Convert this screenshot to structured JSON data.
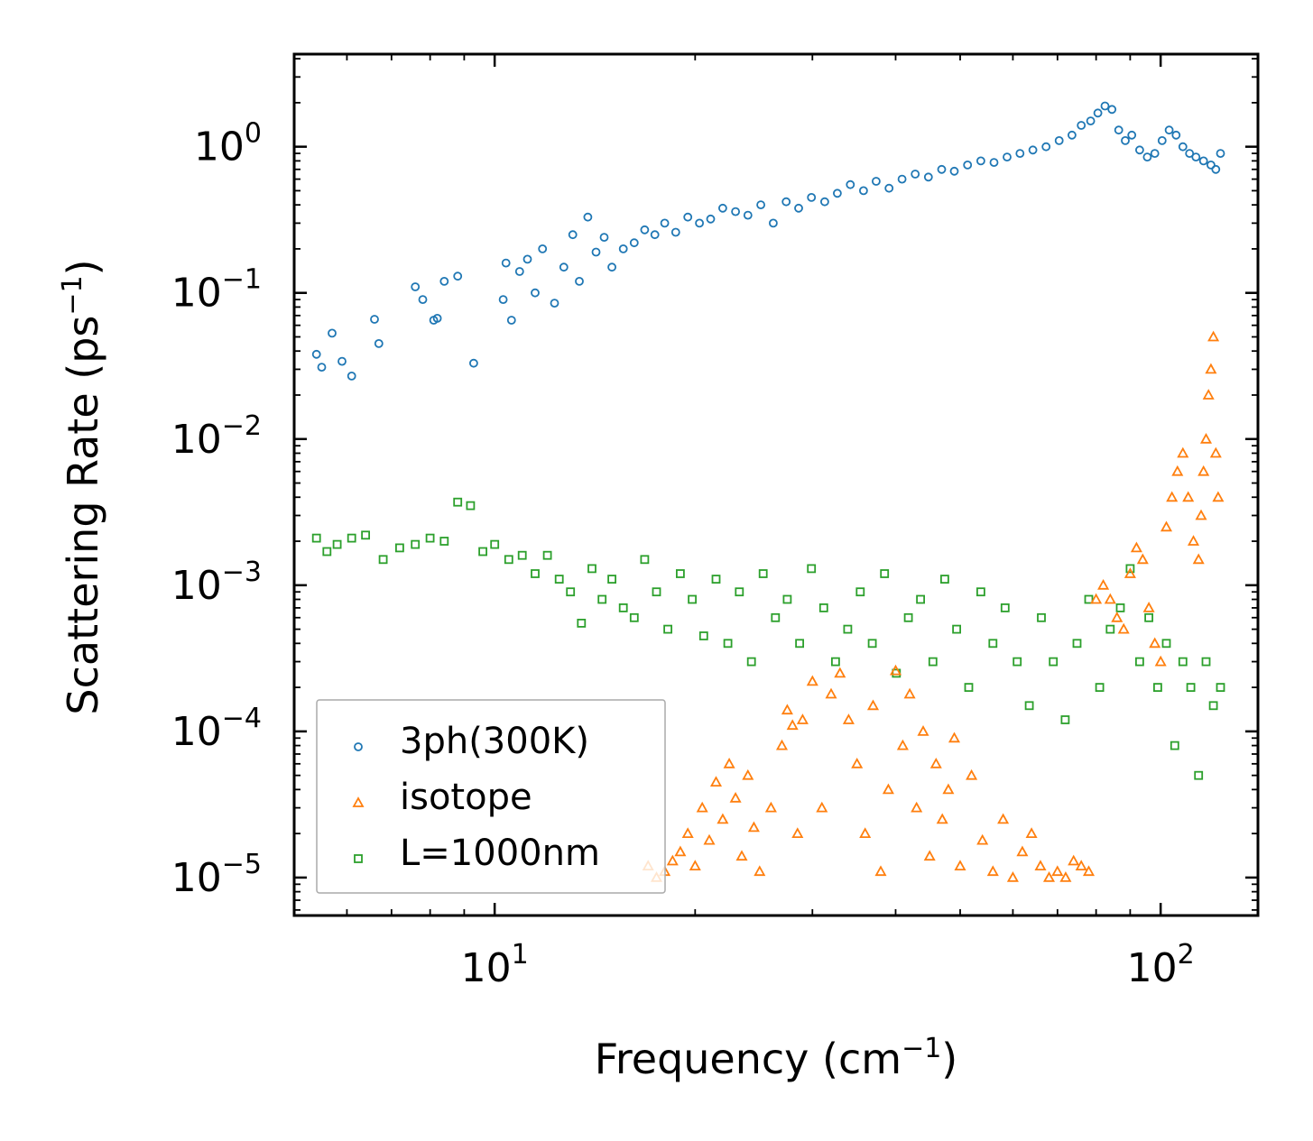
{
  "chart_data": {
    "type": "scatter",
    "title": "",
    "xlabel": "Frequency (cm",
    "xlabel_sup": "−1",
    "xlabel_end": ")",
    "ylabel": "Scattering Rate (ps",
    "ylabel_sup": "−1",
    "ylabel_end": ")",
    "xscale": "log",
    "yscale": "log",
    "xlim": [
      5.0,
      140.0
    ],
    "ylim": [
      5.5e-06,
      4.3
    ],
    "xticks": [
      {
        "value": 10,
        "base": "10",
        "exp": "1"
      },
      {
        "value": 100,
        "base": "10",
        "exp": "2"
      }
    ],
    "yticks": [
      {
        "value": 1,
        "base": "10",
        "exp": "0"
      },
      {
        "value": 0.1,
        "base": "10",
        "exp": "−1"
      },
      {
        "value": 0.01,
        "base": "10",
        "exp": "−2"
      },
      {
        "value": 0.001,
        "base": "10",
        "exp": "−3"
      },
      {
        "value": 0.0001,
        "base": "10",
        "exp": "−4"
      },
      {
        "value": 1e-05,
        "base": "10",
        "exp": "−5"
      }
    ],
    "legend_position": "lower-left",
    "series": [
      {
        "name": "3ph(300K)",
        "marker": "circle",
        "color": "#1f77b4",
        "x": [
          5.4,
          5.5,
          5.7,
          5.9,
          6.1,
          6.6,
          6.7,
          7.6,
          7.8,
          8.1,
          8.2,
          8.4,
          8.8,
          9.3,
          10.3,
          10.4,
          10.6,
          10.9,
          11.2,
          11.5,
          11.8,
          12.3,
          12.7,
          13.1,
          13.4,
          13.8,
          14.2,
          14.6,
          15.0,
          15.6,
          16.2,
          16.8,
          17.4,
          18.0,
          18.7,
          19.5,
          20.3,
          21.1,
          22.0,
          23.0,
          24.0,
          25.1,
          26.2,
          27.4,
          28.6,
          29.9,
          31.3,
          32.7,
          34.2,
          35.8,
          37.4,
          39.1,
          40.9,
          42.8,
          44.8,
          46.9,
          49.0,
          51.3,
          53.7,
          56.2,
          58.8,
          61.5,
          64.3,
          67.3,
          70.4,
          73.6,
          76.0,
          78.5,
          80.5,
          82.5,
          84.5,
          86.5,
          88.5,
          90.5,
          93.0,
          95.5,
          98.0,
          100.5,
          103.0,
          105.5,
          108.0,
          110.5,
          113.0,
          116.0,
          119.0,
          121.0,
          123.0
        ],
        "y": [
          0.038,
          0.031,
          0.053,
          0.034,
          0.027,
          0.066,
          0.045,
          0.11,
          0.09,
          0.065,
          0.067,
          0.12,
          0.13,
          0.033,
          0.09,
          0.16,
          0.065,
          0.14,
          0.17,
          0.1,
          0.2,
          0.085,
          0.15,
          0.25,
          0.12,
          0.33,
          0.19,
          0.24,
          0.15,
          0.2,
          0.22,
          0.27,
          0.25,
          0.3,
          0.26,
          0.33,
          0.3,
          0.32,
          0.38,
          0.36,
          0.34,
          0.4,
          0.3,
          0.42,
          0.38,
          0.45,
          0.42,
          0.48,
          0.55,
          0.5,
          0.58,
          0.52,
          0.6,
          0.65,
          0.62,
          0.7,
          0.68,
          0.75,
          0.8,
          0.78,
          0.85,
          0.9,
          0.95,
          1.0,
          1.1,
          1.2,
          1.4,
          1.5,
          1.7,
          1.9,
          1.8,
          1.3,
          1.1,
          1.2,
          0.95,
          0.85,
          0.9,
          1.1,
          1.3,
          1.2,
          1.0,
          0.9,
          0.85,
          0.8,
          0.75,
          0.7,
          0.9
        ]
      },
      {
        "name": "isotope",
        "marker": "triangle",
        "color": "#ff7f0e",
        "x": [
          17.0,
          17.5,
          18.0,
          18.5,
          19.0,
          19.5,
          20.0,
          20.5,
          21.0,
          21.5,
          22.0,
          22.5,
          23.0,
          23.5,
          24.0,
          24.5,
          25.0,
          26.0,
          27.0,
          27.5,
          28.0,
          28.5,
          29.0,
          30.0,
          31.0,
          32.0,
          33.0,
          34.0,
          35.0,
          36.0,
          37.0,
          38.0,
          39.0,
          40.0,
          41.0,
          42.0,
          43.0,
          44.0,
          45.0,
          46.0,
          47.0,
          48.0,
          49.0,
          50.0,
          52.0,
          54.0,
          56.0,
          58.0,
          60.0,
          62.0,
          64.0,
          66.0,
          68.0,
          70.0,
          72.0,
          74.0,
          76.0,
          78.0,
          80.0,
          82.0,
          84.0,
          86.0,
          88.0,
          90.0,
          92.0,
          94.0,
          96.0,
          98.0,
          100.0,
          102.0,
          104.0,
          106.0,
          108.0,
          110.0,
          112.0,
          114.0,
          115.0,
          116.0,
          117.0,
          118.0,
          119.0,
          120.0,
          121.0,
          122.0
        ],
        "y": [
          1.2e-05,
          1e-05,
          1.1e-05,
          1.3e-05,
          1.5e-05,
          2e-05,
          1.2e-05,
          3e-05,
          1.8e-05,
          4.5e-05,
          2.5e-05,
          6e-05,
          3.5e-05,
          1.4e-05,
          5e-05,
          2.2e-05,
          1.1e-05,
          3e-05,
          8e-05,
          0.00014,
          0.00011,
          2e-05,
          0.00012,
          0.00022,
          3e-05,
          0.00018,
          0.00025,
          0.00012,
          6e-05,
          2e-05,
          0.00015,
          1.1e-05,
          4e-05,
          0.00026,
          8e-05,
          0.00018,
          3e-05,
          0.0001,
          1.4e-05,
          6e-05,
          2.5e-05,
          4e-05,
          9e-05,
          1.2e-05,
          5e-05,
          1.8e-05,
          1.1e-05,
          2.5e-05,
          1e-05,
          1.5e-05,
          2e-05,
          1.2e-05,
          1e-05,
          1.1e-05,
          1e-05,
          1.3e-05,
          1.2e-05,
          1.1e-05,
          0.0008,
          0.001,
          0.0008,
          0.0006,
          0.0005,
          0.0012,
          0.0018,
          0.0015,
          0.0007,
          0.0004,
          0.0003,
          0.0025,
          0.004,
          0.006,
          0.008,
          0.004,
          0.002,
          0.0015,
          0.003,
          0.006,
          0.01,
          0.02,
          0.03,
          0.05,
          0.008,
          0.004
        ]
      },
      {
        "name": "L=1000nm",
        "marker": "square",
        "color": "#2ca02c",
        "x": [
          5.4,
          5.6,
          5.8,
          6.1,
          6.4,
          6.8,
          7.2,
          7.6,
          8.0,
          8.4,
          8.8,
          9.2,
          9.6,
          10.0,
          10.5,
          11.0,
          11.5,
          12.0,
          12.5,
          13.0,
          13.5,
          14.0,
          14.5,
          15.0,
          15.6,
          16.2,
          16.8,
          17.5,
          18.2,
          19.0,
          19.8,
          20.6,
          21.5,
          22.4,
          23.3,
          24.3,
          25.3,
          26.4,
          27.5,
          28.7,
          29.9,
          31.2,
          32.5,
          33.9,
          35.4,
          36.9,
          38.5,
          40.1,
          41.8,
          43.6,
          45.5,
          47.4,
          49.4,
          51.5,
          53.7,
          56.0,
          58.4,
          60.9,
          63.5,
          66.2,
          69.0,
          71.9,
          74.9,
          78.0,
          81.0,
          84.0,
          87.0,
          90.0,
          93.0,
          96.0,
          99.0,
          102.0,
          105.0,
          108.0,
          111.0,
          114.0,
          117.0,
          120.0,
          123.0
        ],
        "y": [
          0.0021,
          0.0017,
          0.0019,
          0.0021,
          0.0022,
          0.0015,
          0.0018,
          0.0019,
          0.0021,
          0.002,
          0.0037,
          0.0035,
          0.0017,
          0.0019,
          0.0015,
          0.0016,
          0.0012,
          0.0016,
          0.0011,
          0.0009,
          0.00055,
          0.0013,
          0.0008,
          0.0011,
          0.0007,
          0.0006,
          0.0015,
          0.0009,
          0.0005,
          0.0012,
          0.0008,
          0.00045,
          0.0011,
          0.0004,
          0.0009,
          0.0003,
          0.0012,
          0.0006,
          0.0008,
          0.0004,
          0.0013,
          0.0007,
          0.0003,
          0.0005,
          0.0009,
          0.0004,
          0.0012,
          0.00025,
          0.0006,
          0.0008,
          0.0003,
          0.0011,
          0.0005,
          0.0002,
          0.0009,
          0.0004,
          0.0007,
          0.0003,
          0.00015,
          0.0006,
          0.0003,
          0.00012,
          0.0004,
          0.0008,
          0.0002,
          0.0005,
          0.0007,
          0.0013,
          0.0003,
          0.0006,
          0.0002,
          0.0004,
          8e-05,
          0.0003,
          0.0002,
          5e-05,
          0.0003,
          0.00015,
          0.0002
        ]
      }
    ]
  }
}
